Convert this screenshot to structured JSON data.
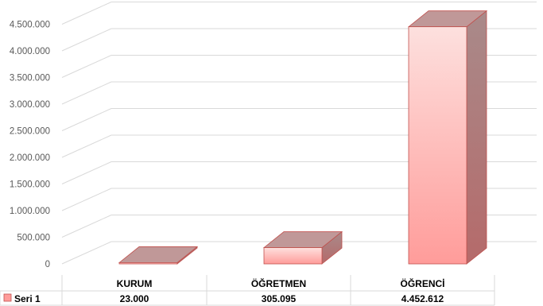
{
  "chart_data": {
    "type": "bar",
    "style": "3d-column-with-data-table",
    "categories": [
      "KURUM",
      "ÖĞRETMEN",
      "ÖĞRENCİ"
    ],
    "series": [
      {
        "name": "Seri 1",
        "values": [
          23000,
          305095,
          4452612
        ]
      }
    ],
    "value_labels": [
      "23.000",
      "305.095",
      "4.452.612"
    ],
    "ylim": [
      0,
      5000000
    ],
    "yticks": [
      0,
      500000,
      1000000,
      1500000,
      2000000,
      2500000,
      3000000,
      3500000,
      4000000,
      4500000
    ],
    "ytick_labels": [
      "0",
      "500.000",
      "1.000.000",
      "1.500.000",
      "2.000.000",
      "2.500.000",
      "3.000.000",
      "3.500.000",
      "4.000.000",
      "4.500.000"
    ],
    "grid": true,
    "legend": "data-table-left",
    "colors": {
      "bar_front_top": "#fde0de",
      "bar_front_bottom": "#ff9c9a",
      "bar_side": "#b07878",
      "bar_top": "#c09898",
      "bar_edge": "#c0504d",
      "grid": "#d9d9d9",
      "axis_text": "#595959"
    }
  }
}
